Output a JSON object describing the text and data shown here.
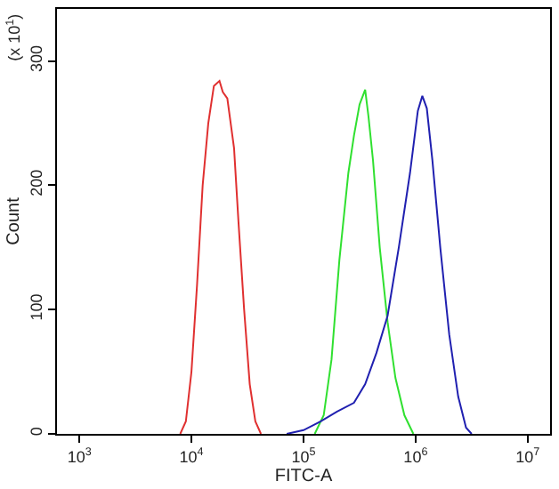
{
  "chart_data": {
    "type": "line",
    "xlabel": "FITC-A",
    "ylabel": "Count",
    "log": "x",
    "marker": "none",
    "line_style": "solid",
    "annotations": [
      "(x 10$^{1}$)"
    ],
    "xlim": [
      631,
      15850000
    ],
    "xticks": [
      {
        "value": 1000,
        "label": "10$^{3}$"
      },
      {
        "value": 10000,
        "label": "10$^{4}$"
      },
      {
        "value": 100000,
        "label": "10$^{5}$"
      },
      {
        "value": 1000000,
        "label": "10$^{6}$"
      },
      {
        "value": 10000000,
        "label": "10$^{7}$"
      }
    ],
    "ylim": [
      0,
      342
    ],
    "yticks": [
      0,
      100,
      200,
      300
    ],
    "series": [
      {
        "color": "#e03030",
        "x": [
          7943,
          8913,
          10000,
          11220,
          12590,
          14130,
          15850,
          17780,
          19050,
          20890,
          23990,
          26300,
          29510,
          33110,
          37150,
          41690
        ],
        "values": [
          0,
          10,
          50,
          120,
          200,
          250,
          280,
          284,
          275,
          270,
          230,
          170,
          100,
          40,
          10,
          0
        ]
      },
      {
        "color": "#30e030",
        "x": [
          125900,
          151400,
          177800,
          208900,
          251200,
          281800,
          316200,
          354800,
          380200,
          416900,
          478600,
          562300,
          660700,
          794300,
          955000
        ],
        "values": [
          0,
          15,
          60,
          140,
          210,
          240,
          265,
          277,
          255,
          220,
          150,
          90,
          45,
          15,
          0
        ]
      },
      {
        "color": "#2020b0",
        "x": [
          70790,
          100000,
          141300,
          199500,
          281800,
          354800,
          446700,
          562300,
          707900,
          891300,
          1047000,
          1148000,
          1259000,
          1413000,
          1660000,
          1995000,
          2399000,
          2818000,
          3162000
        ],
        "values": [
          0,
          3,
          10,
          18,
          25,
          40,
          65,
          95,
          150,
          210,
          260,
          272,
          262,
          220,
          150,
          80,
          30,
          5,
          0
        ]
      }
    ]
  }
}
